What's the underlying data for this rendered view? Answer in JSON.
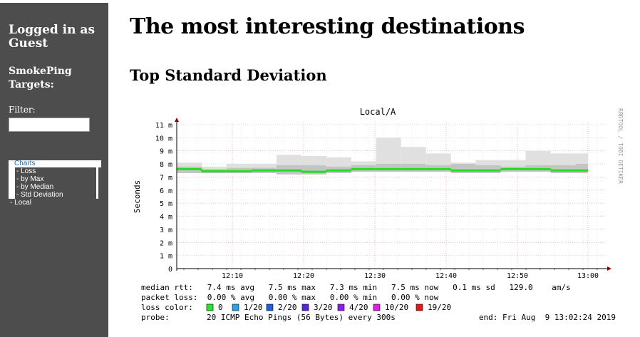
{
  "sidebar": {
    "login": "Logged in as Guest",
    "targets_heading": "SmokePing Targets:",
    "filter_label": "Filter:",
    "filter_value": "",
    "menu": {
      "charts": "Charts",
      "items": [
        "- Loss",
        "- by Max",
        "- by Median",
        "- Std Deviation"
      ],
      "local": "- Local"
    }
  },
  "main": {
    "title": "The most interesting destinations",
    "subtitle": "Top Standard Deviation"
  },
  "colors": {
    "sidebar_bg": "#4d4d4d",
    "line_green": "#33e633",
    "smoke": "#cccccc",
    "grid": "#e89a9a",
    "axis": "#8b0000"
  },
  "chart_data": {
    "type": "line",
    "title": "Local/A",
    "ylabel": "Seconds",
    "watermark": "RRDTOOL / TOBI OETIKER",
    "yticks": [
      "0",
      "1 m",
      "2 m",
      "3 m",
      "4 m",
      "5 m",
      "6 m",
      "7 m",
      "8 m",
      "9 m",
      "10 m",
      "11 m"
    ],
    "xticks": [
      "12:10",
      "12:20",
      "12:30",
      "12:40",
      "12:50",
      "13:00"
    ],
    "ylim_ms": [
      0,
      11
    ],
    "series": [
      {
        "name": "median rtt",
        "steps_ms": [
          7.6,
          7.45,
          7.45,
          7.5,
          7.5,
          7.4,
          7.5,
          7.6,
          7.6,
          7.6,
          7.6,
          7.5,
          7.5,
          7.6,
          7.6,
          7.5,
          7.5
        ]
      }
    ],
    "smoke_max_ms": [
      8.1,
      7.8,
      8.0,
      8.0,
      8.7,
      8.6,
      8.5,
      8.2,
      10.0,
      9.3,
      8.8,
      8.1,
      8.3,
      8.3,
      9.0,
      8.8,
      8.8
    ],
    "smoke_min_ms": [
      7.3,
      7.3,
      7.3,
      7.3,
      7.2,
      7.2,
      7.3,
      7.4,
      7.4,
      7.4,
      7.4,
      7.3,
      7.3,
      7.4,
      7.4,
      7.3,
      7.3
    ],
    "dark_smoke_max_ms": [
      7.8,
      7.6,
      7.7,
      7.7,
      7.9,
      7.9,
      7.8,
      7.9,
      8.0,
      8.0,
      7.9,
      8.0,
      7.9,
      7.8,
      7.9,
      7.9,
      8.0
    ],
    "legend": {
      "median_rtt": "median rtt:   7.4 ms avg   7.5 ms max   7.3 ms min   7.5 ms now   0.1 ms sd   129.0    am/s",
      "packet_loss": "packet loss:  0.00 % avg   0.00 % max   0.00 % min   0.00 % now",
      "loss_color_label": "loss color:",
      "loss_colors": [
        {
          "label": "0",
          "color": "#26e626"
        },
        {
          "label": "1/20",
          "color": "#29a3e6"
        },
        {
          "label": "2/20",
          "color": "#1d5fe0"
        },
        {
          "label": "3/20",
          "color": "#5a24e0"
        },
        {
          "label": "4/20",
          "color": "#8a20e8"
        },
        {
          "label": "10/20",
          "color": "#e020e0"
        },
        {
          "label": "19/20",
          "color": "#e01a1a"
        }
      ],
      "probe_label": "probe:",
      "probe": "20 ICMP Echo Pings (56 Bytes) every 300s",
      "end": "end: Fri Aug  9 13:02:24 2019"
    }
  }
}
